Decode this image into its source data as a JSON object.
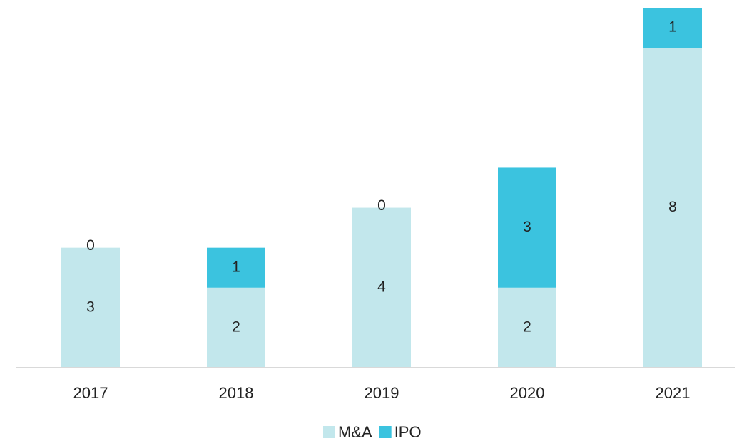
{
  "chart_data": {
    "type": "stacked_bar",
    "categories": [
      "2017",
      "2018",
      "2019",
      "2020",
      "2021"
    ],
    "series": [
      {
        "name": "M&A",
        "color": "#c2e7ec",
        "values": [
          3,
          2,
          4,
          2,
          8
        ]
      },
      {
        "name": "IPO",
        "color": "#3bc3df",
        "values": [
          0,
          1,
          0,
          3,
          1
        ]
      }
    ],
    "legend": "bottom"
  }
}
